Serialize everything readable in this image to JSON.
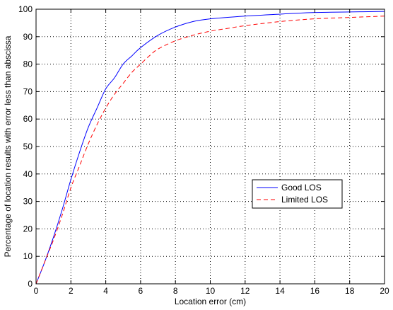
{
  "chart_data": {
    "type": "line",
    "title": "",
    "xlabel": "Location error (cm)",
    "ylabel": "Percentage of location results with error less than abscissa",
    "xlim": [
      0,
      20
    ],
    "ylim": [
      0,
      100
    ],
    "xticks": [
      0,
      2,
      4,
      6,
      8,
      10,
      12,
      14,
      16,
      18,
      20
    ],
    "yticks": [
      0,
      10,
      20,
      30,
      40,
      50,
      60,
      70,
      80,
      90,
      100
    ],
    "grid": true,
    "legend": "center-right",
    "series": [
      {
        "name": "Good LOS",
        "color": "#0000ff",
        "dash": "solid",
        "x": [
          0,
          0.5,
          1,
          1.5,
          2,
          2.5,
          3,
          3.5,
          4,
          4.5,
          5,
          5.5,
          6,
          7,
          8,
          9,
          10,
          12,
          14,
          16,
          18,
          20
        ],
        "y": [
          0,
          8,
          17,
          27,
          38,
          48,
          57,
          64,
          71,
          75,
          80,
          83,
          86,
          90.5,
          93.5,
          95.5,
          96.5,
          97.5,
          98.2,
          98.8,
          99,
          99.2
        ]
      },
      {
        "name": "Limited LOS",
        "color": "#ff0000",
        "dash": "dashed",
        "x": [
          0,
          0.5,
          1,
          1.5,
          2,
          2.5,
          3,
          3.5,
          4,
          4.5,
          5,
          5.5,
          6,
          6.5,
          7,
          8,
          9,
          10,
          11,
          12,
          14,
          16,
          18,
          20
        ],
        "y": [
          0,
          8,
          16,
          25,
          35,
          43,
          51,
          58,
          64,
          69,
          73,
          77,
          80,
          83,
          85.5,
          88.5,
          90.5,
          92,
          93,
          94,
          95.5,
          96.5,
          97,
          97.5
        ]
      }
    ]
  }
}
